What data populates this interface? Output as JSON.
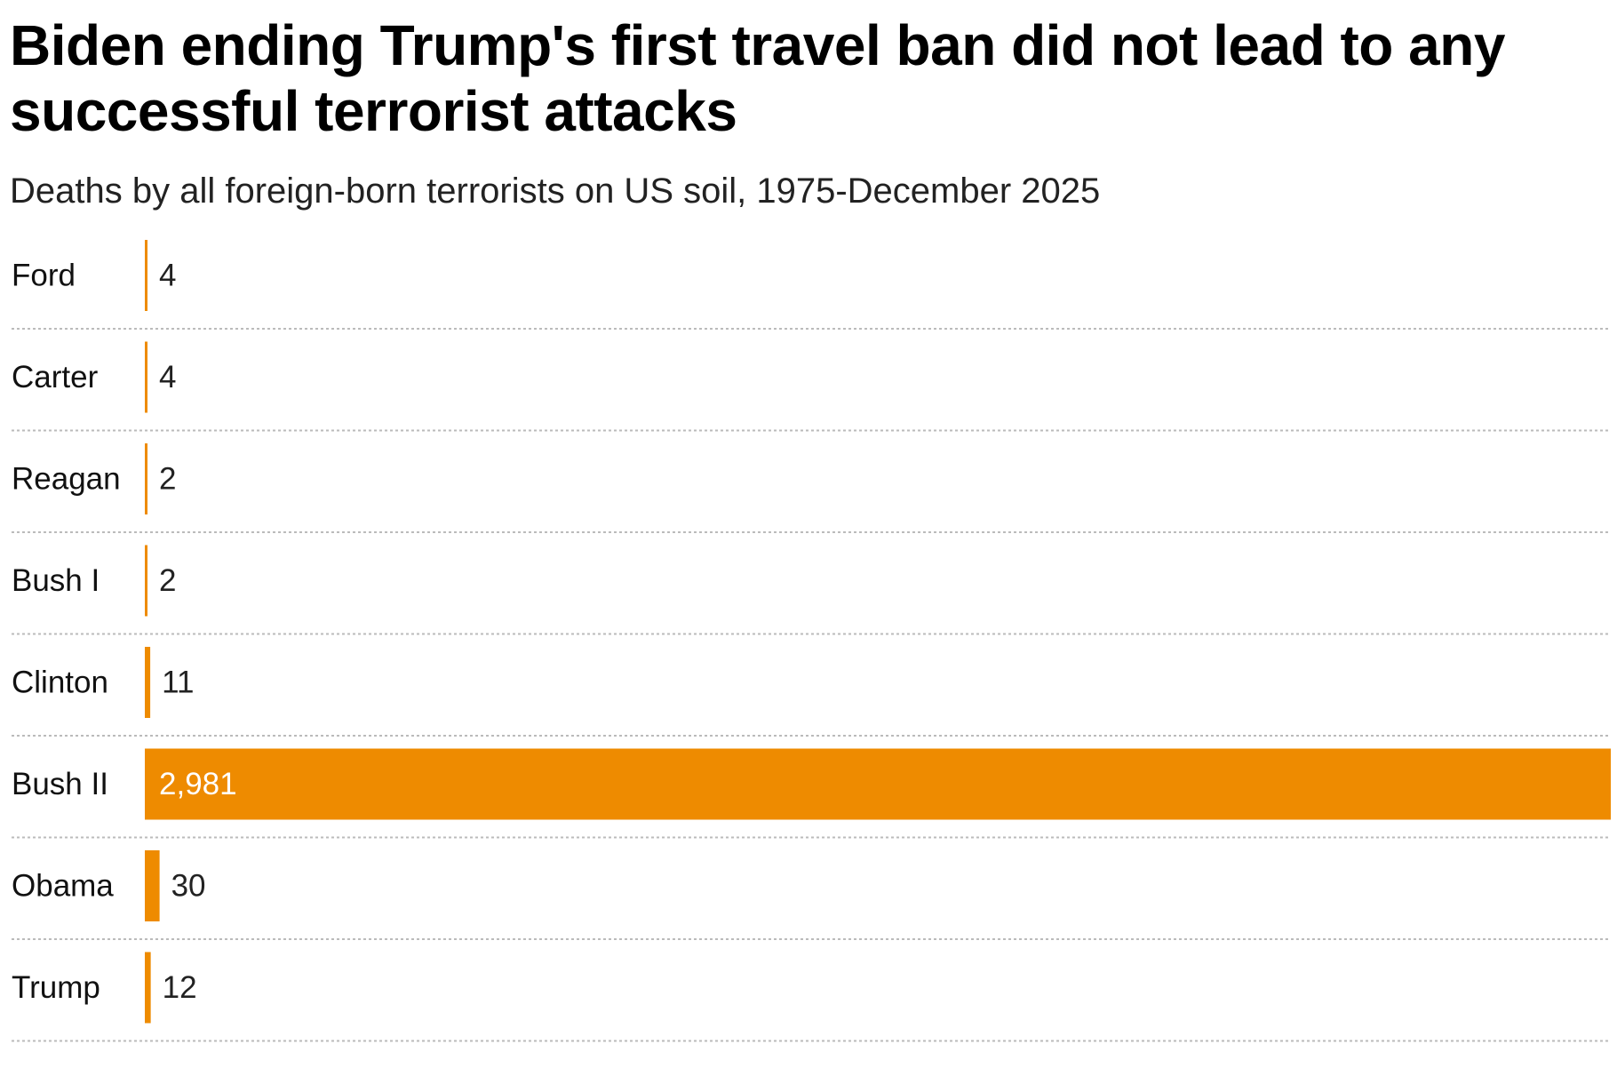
{
  "title": "Biden ending Trump's first travel ban did not lead to any successful terrorist attacks",
  "subtitle": "Deaths by all foreign-born terrorists on US soil, 1975-December 2025",
  "colors": {
    "bar": "#ee8b00",
    "label_outside": "#222222",
    "label_inside": "#ffffff",
    "separator": "#bbbbbb"
  },
  "chart_data": {
    "type": "bar",
    "orientation": "horizontal",
    "categories": [
      "Ford",
      "Carter",
      "Reagan",
      "Bush I",
      "Clinton",
      "Bush II",
      "Obama",
      "Trump"
    ],
    "values": [
      4,
      4,
      2,
      2,
      11,
      2981,
      30,
      12
    ],
    "value_labels": [
      "4",
      "4",
      "2",
      "2",
      "11",
      "2,981",
      "30",
      "12"
    ],
    "xlim": [
      0,
      2981
    ],
    "grid": false,
    "legend": "none"
  }
}
